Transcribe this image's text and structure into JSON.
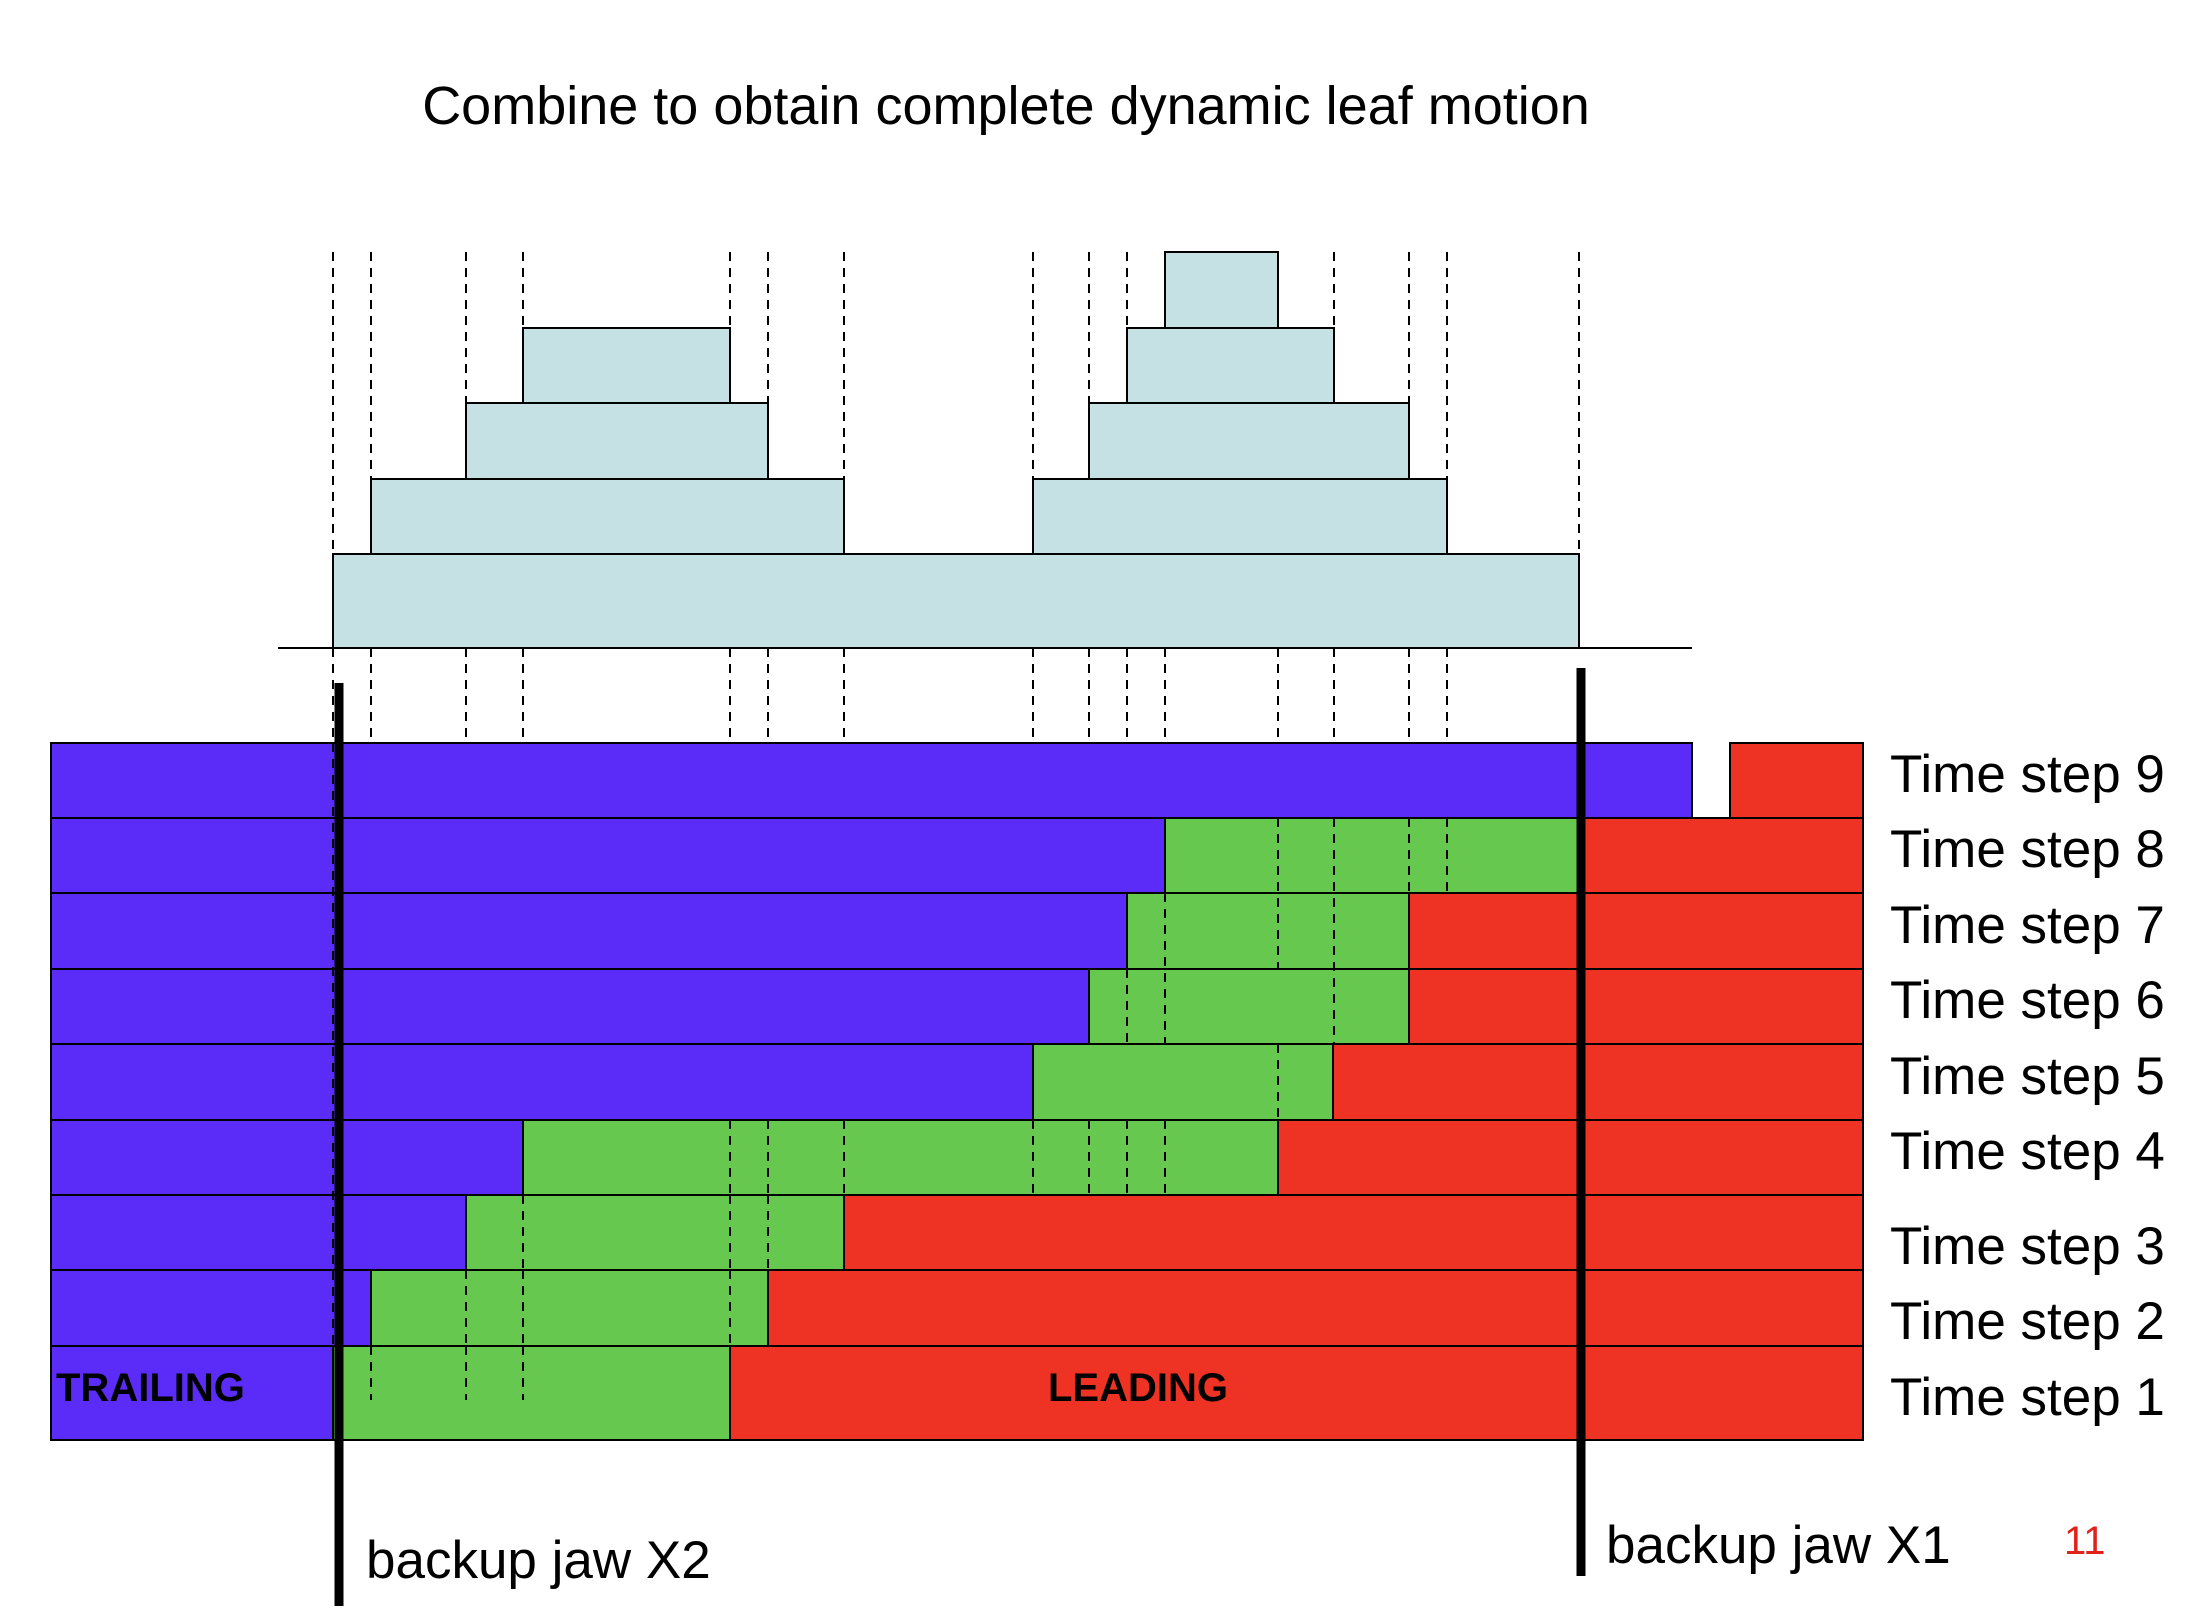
{
  "title": "Combine to obtain complete dynamic leaf motion",
  "labels": {
    "trailing": "TRAILING",
    "leading": "LEADING",
    "jaw_x2": "backup jaw X2",
    "jaw_x1": "backup jaw X1",
    "page_number": "11"
  },
  "colors": {
    "trailing": "#5B2BF7",
    "open": "#66C84F",
    "leading": "#EE3224",
    "profile": "#C5E1E3",
    "page_number": "#E0231A"
  },
  "time_steps": [
    {
      "label": "Time step 9"
    },
    {
      "label": "Time step 8"
    },
    {
      "label": "Time step 7"
    },
    {
      "label": "Time step 6"
    },
    {
      "label": "Time step 5"
    },
    {
      "label": "Time step 4"
    },
    {
      "label": "Time step 3"
    },
    {
      "label": "Time step 2"
    },
    {
      "label": "Time step 1"
    }
  ]
}
